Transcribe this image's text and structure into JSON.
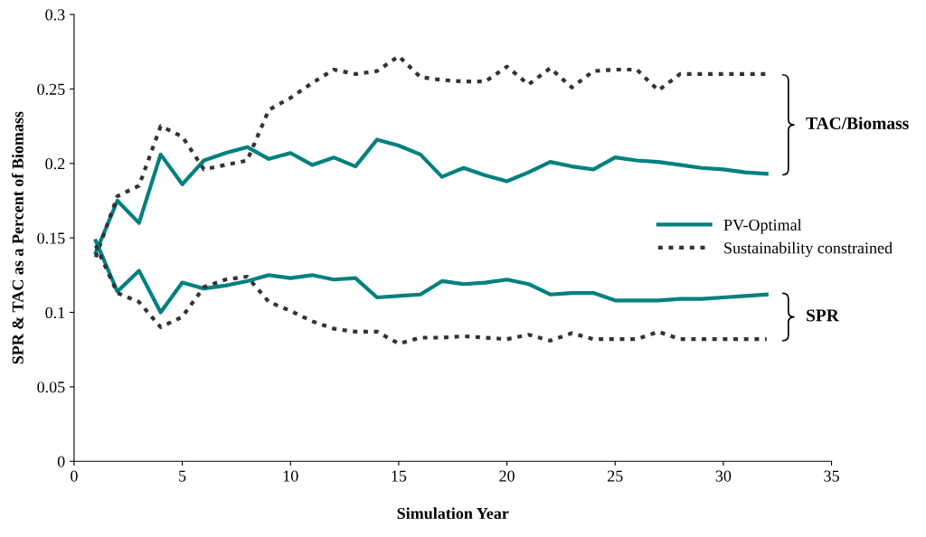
{
  "chart_data": {
    "type": "line",
    "xlabel": "Simulation Year",
    "ylabel": "SPR & TAC as a Percent of Biomass",
    "x": [
      1,
      2,
      3,
      4,
      5,
      6,
      7,
      8,
      9,
      10,
      11,
      12,
      13,
      14,
      15,
      16,
      17,
      18,
      19,
      20,
      21,
      22,
      23,
      24,
      25,
      26,
      27,
      28,
      29,
      30,
      31,
      32
    ],
    "xlim": [
      0,
      35
    ],
    "xticks": [
      0,
      5,
      10,
      15,
      20,
      25,
      30,
      35
    ],
    "ylim": [
      0,
      0.3
    ],
    "yticks": [
      0,
      0.05,
      0.1,
      0.15,
      0.2,
      0.25,
      0.3
    ],
    "grid": false,
    "legend": "right",
    "marker": "none",
    "series": [
      {
        "name": "PV-Optimal",
        "color": "#008080",
        "line_style": "solid",
        "values": [
          0.14,
          0.175,
          0.16,
          0.206,
          0.186,
          0.202,
          0.207,
          0.211,
          0.203,
          0.207,
          0.199,
          0.204,
          0.198,
          0.216,
          0.212,
          0.206,
          0.191,
          0.197,
          0.192,
          0.188,
          0.194,
          0.201,
          0.198,
          0.196,
          0.204,
          0.202,
          0.201,
          0.199,
          0.197,
          0.196,
          0.194,
          0.193
        ]
      },
      {
        "name": "Sustainability constrained",
        "color": "#333333",
        "line_style": "dotted",
        "values": [
          0.137,
          0.178,
          0.185,
          0.225,
          0.218,
          0.196,
          0.199,
          0.202,
          0.236,
          0.244,
          0.254,
          0.263,
          0.26,
          0.262,
          0.272,
          0.258,
          0.256,
          0.255,
          0.255,
          0.265,
          0.253,
          0.264,
          0.251,
          0.262,
          0.263,
          0.263,
          0.249,
          0.26,
          0.26,
          0.26,
          0.26,
          0.26
        ]
      },
      {
        "color": "#008080",
        "line_style": "solid",
        "values": [
          0.148,
          0.114,
          0.128,
          0.1,
          0.12,
          0.116,
          0.118,
          0.121,
          0.125,
          0.123,
          0.125,
          0.122,
          0.123,
          0.11,
          0.111,
          0.112,
          0.121,
          0.119,
          0.12,
          0.122,
          0.119,
          0.112,
          0.113,
          0.113,
          0.108,
          0.108,
          0.108,
          0.109,
          0.109,
          0.11,
          0.111,
          0.112
        ]
      },
      {
        "color": "#333333",
        "line_style": "dotted",
        "values": [
          0.145,
          0.113,
          0.107,
          0.09,
          0.097,
          0.117,
          0.122,
          0.124,
          0.107,
          0.101,
          0.094,
          0.089,
          0.087,
          0.087,
          0.079,
          0.083,
          0.083,
          0.084,
          0.083,
          0.082,
          0.085,
          0.081,
          0.086,
          0.082,
          0.082,
          0.082,
          0.087,
          0.082,
          0.082,
          0.082,
          0.082,
          0.082
        ]
      }
    ],
    "annotations": [
      "TAC/Biomass",
      "SPR"
    ]
  }
}
